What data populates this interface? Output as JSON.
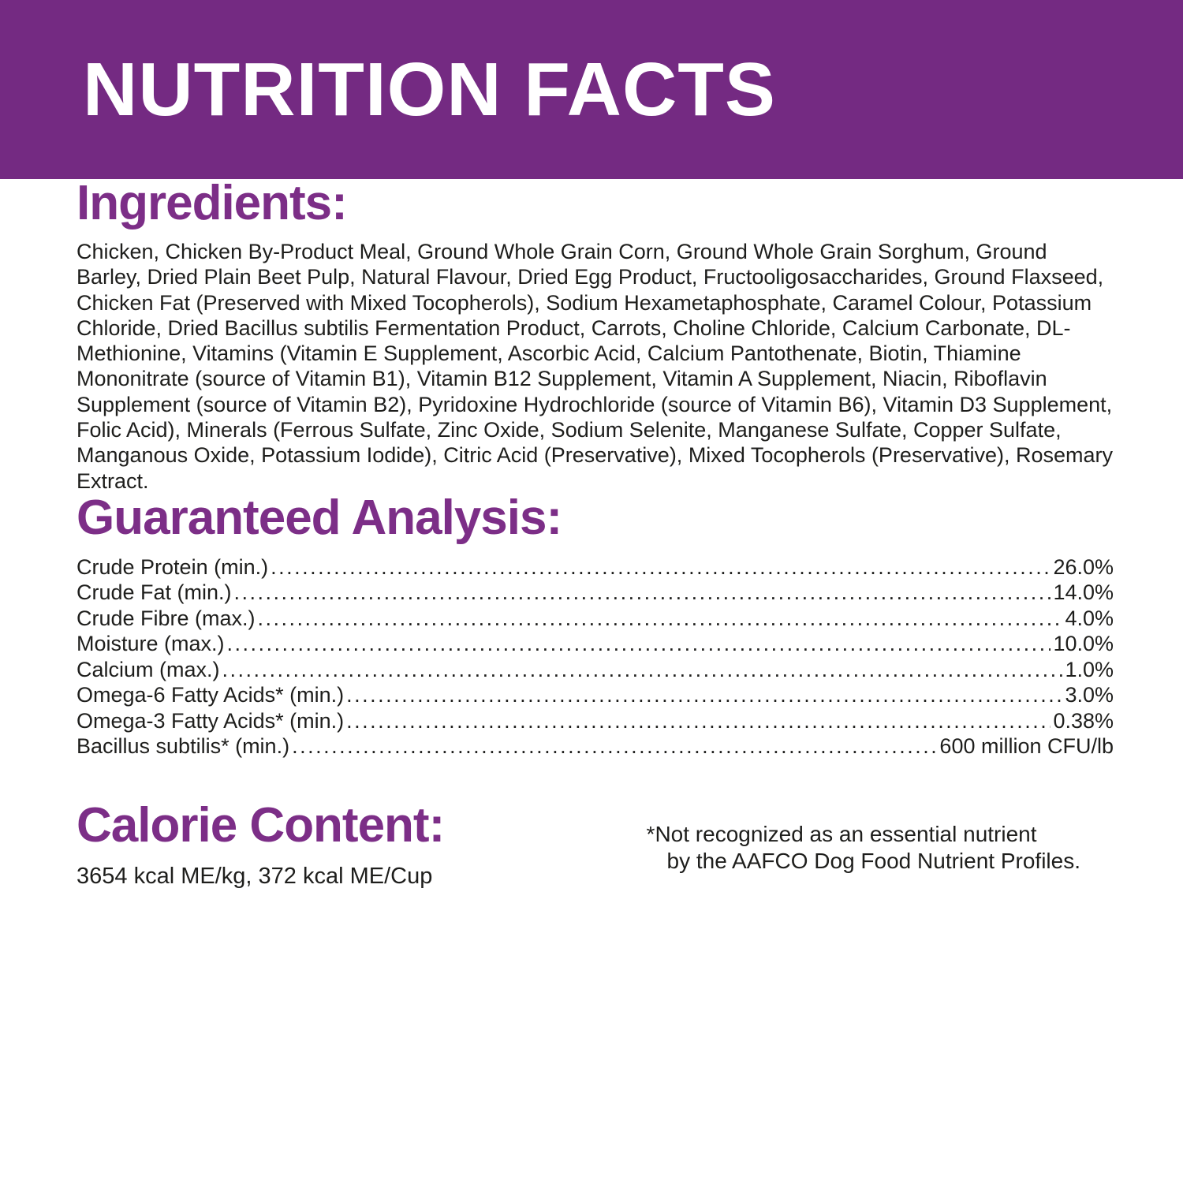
{
  "colors": {
    "brand_purple_band": "#742a82",
    "heading_purple": "#7c2e87",
    "title_text": "#ffffff",
    "body_text": "#1e1e1c"
  },
  "header": {
    "title": "NUTRITION FACTS"
  },
  "ingredients": {
    "heading": "Ingredients:",
    "text": "Chicken, Chicken By-Product Meal, Ground Whole Grain Corn, Ground Whole Grain Sorghum, Ground Barley, Dried Plain Beet Pulp, Natural Flavour, Dried Egg Product, Fructooligosaccharides, Ground Flaxseed, Chicken Fat (Preserved with Mixed Tocopherols), Sodium Hexametaphosphate, Caramel Colour, Potassium Chloride, Dried Bacillus subtilis Fermentation Product, Carrots, Choline Chloride, Calcium Carbonate, DL-Methionine, Vitamins (Vitamin E Supplement, Ascorbic Acid, Calcium Pantothenate, Biotin, Thiamine Mononitrate (source of Vitamin B1), Vitamin B12 Supplement, Vitamin A Supplement, Niacin, Riboflavin Supplement (source of Vitamin B2), Pyridoxine Hydrochloride (source of Vitamin B6), Vitamin D3 Supplement, Folic Acid), Minerals (Ferrous Sulfate, Zinc Oxide, Sodium Selenite, Manganese Sulfate, Copper Sulfate, Manganous Oxide, Potassium Iodide), Citric Acid (Preservative), Mixed Tocopherols (Preservative), Rosemary Extract."
  },
  "guaranteed_analysis": {
    "heading": "Guaranteed Analysis:",
    "rows": [
      {
        "label": "Crude Protein (min.)",
        "value": "26.0%"
      },
      {
        "label": "Crude Fat (min.)",
        "value": "14.0%"
      },
      {
        "label": "Crude Fibre (max.)",
        "value": "4.0%"
      },
      {
        "label": "Moisture (max.)",
        "value": "10.0%"
      },
      {
        "label": "Calcium (max.)",
        "value": "1.0%"
      },
      {
        "label": "Omega-6 Fatty Acids* (min.)",
        "value": "3.0%"
      },
      {
        "label": "Omega-3 Fatty Acids* (min.)",
        "value": "0.38%"
      },
      {
        "label": "Bacillus subtilis* (min.)",
        "value": "600 million CFU/lb"
      }
    ]
  },
  "calorie_content": {
    "heading": "Calorie Content:",
    "value": "3654 kcal ME/kg, 372 kcal ME/Cup"
  },
  "footnote": {
    "line1": "*Not recognized as an essential nutrient",
    "line2": "by the AAFCO Dog Food Nutrient Profiles."
  }
}
